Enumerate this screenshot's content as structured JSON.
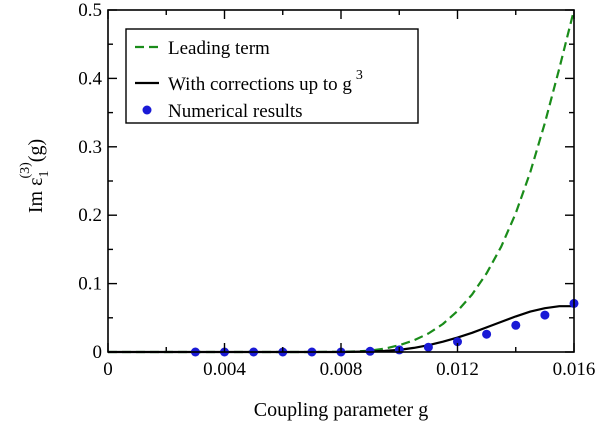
{
  "chart_data": {
    "type": "line",
    "xlabel": "Coupling parameter g",
    "ylabel": {
      "base": "Im ε",
      "subscript": "1",
      "superscript": "(3)",
      "suffix": "(g)"
    },
    "xlim": [
      0,
      0.016
    ],
    "ylim": [
      0,
      0.5
    ],
    "x_ticks": [
      0,
      0.004,
      0.008,
      0.012,
      0.016
    ],
    "x_tick_labels": [
      "0",
      "0.004",
      "0.008",
      "0.012",
      "0.016"
    ],
    "y_ticks": [
      0,
      0.1,
      0.2,
      0.3,
      0.4,
      0.5
    ],
    "y_tick_labels": [
      "0",
      "0.1",
      "0.2",
      "0.3",
      "0.4",
      "0.5"
    ],
    "grid": false,
    "legend": {
      "placement": "top-left",
      "entries": [
        {
          "label": "Leading term",
          "style": "dashed-line",
          "color": "#1a8c1a"
        },
        {
          "label": "With corrections up to g",
          "superscript": "3",
          "style": "solid-line",
          "color": "#000000"
        },
        {
          "label": "Numerical results",
          "style": "marker",
          "color": "#1a1ad6"
        }
      ]
    },
    "series": [
      {
        "name": "Leading term",
        "kind": "line",
        "style": "dashed",
        "color": "#1a8c1a",
        "x": [
          0,
          0.001,
          0.002,
          0.003,
          0.004,
          0.005,
          0.006,
          0.007,
          0.008,
          0.0085,
          0.009,
          0.0095,
          0.01,
          0.0105,
          0.011,
          0.0115,
          0.012,
          0.0125,
          0.013,
          0.0135,
          0.014,
          0.0145,
          0.015,
          0.0155,
          0.016
        ],
        "y": [
          0,
          0,
          0,
          0,
          0,
          0,
          0,
          0,
          0.0003,
          0.0008,
          0.002,
          0.005,
          0.01,
          0.017,
          0.027,
          0.041,
          0.06,
          0.084,
          0.115,
          0.154,
          0.203,
          0.263,
          0.335,
          0.415,
          0.5
        ]
      },
      {
        "name": "With corrections up to g^3",
        "kind": "line",
        "style": "solid",
        "color": "#000000",
        "x": [
          0,
          0.001,
          0.002,
          0.003,
          0.004,
          0.005,
          0.006,
          0.007,
          0.008,
          0.009,
          0.0095,
          0.01,
          0.0105,
          0.011,
          0.0115,
          0.012,
          0.0125,
          0.013,
          0.0135,
          0.014,
          0.0145,
          0.015,
          0.0155,
          0.016
        ],
        "y": [
          0,
          0,
          0,
          0,
          0,
          0,
          0,
          0,
          0,
          0.0008,
          0.0016,
          0.003,
          0.006,
          0.01,
          0.015,
          0.021,
          0.028,
          0.036,
          0.044,
          0.052,
          0.059,
          0.064,
          0.067,
          0.067
        ]
      },
      {
        "name": "Numerical results",
        "kind": "scatter",
        "color": "#1a1ad6",
        "x": [
          0.003,
          0.004,
          0.005,
          0.006,
          0.007,
          0.008,
          0.009,
          0.01,
          0.011,
          0.012,
          0.013,
          0.014,
          0.015,
          0.016
        ],
        "y": [
          0,
          0,
          0,
          0,
          0,
          0,
          0.001,
          0.003,
          0.007,
          0.015,
          0.026,
          0.039,
          0.054,
          0.071
        ]
      }
    ]
  }
}
